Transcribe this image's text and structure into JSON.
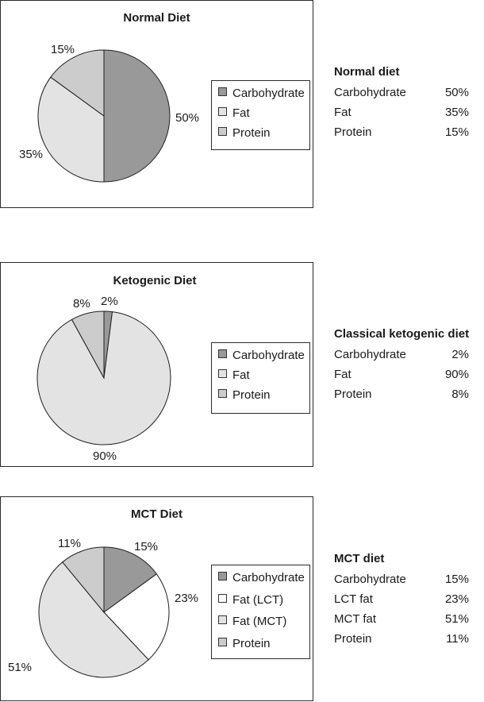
{
  "colors": {
    "carbohydrate": "#999999",
    "fat": "#e3e3e3",
    "fat_lct": "#ffffff",
    "fat_mct": "#e3e3e3",
    "protein": "#cccccc"
  },
  "chart_data": [
    {
      "type": "pie",
      "title": "Normal Diet",
      "legend": [
        "Carbohydrate",
        "Fat",
        "Protein"
      ],
      "slices": [
        {
          "name": "Carbohydrate",
          "value": 50,
          "label": "50%",
          "color": "#999999"
        },
        {
          "name": "Fat",
          "value": 35,
          "label": "35%",
          "color": "#e3e3e3"
        },
        {
          "name": "Protein",
          "value": 15,
          "label": "15%",
          "color": "#cccccc"
        }
      ],
      "table": {
        "heading": "Normal diet",
        "rows": [
          {
            "label": "Carbohydrate",
            "value": "50%"
          },
          {
            "label": "Fat",
            "value": "35%"
          },
          {
            "label": "Protein",
            "value": "15%"
          }
        ]
      }
    },
    {
      "type": "pie",
      "title": "Ketogenic Diet",
      "legend": [
        "Carbohydrate",
        "Fat",
        "Protein"
      ],
      "slices": [
        {
          "name": "Carbohydrate",
          "value": 2,
          "label": "2%",
          "color": "#999999"
        },
        {
          "name": "Fat",
          "value": 90,
          "label": "90%",
          "color": "#e3e3e3"
        },
        {
          "name": "Protein",
          "value": 8,
          "label": "8%",
          "color": "#cccccc"
        }
      ],
      "table": {
        "heading": "Classical ketogenic diet",
        "rows": [
          {
            "label": "Carbohydrate",
            "value": "2%"
          },
          {
            "label": "Fat",
            "value": "90%"
          },
          {
            "label": "Protein",
            "value": "8%"
          }
        ]
      }
    },
    {
      "type": "pie",
      "title": "MCT Diet",
      "legend": [
        "Carbohydrate",
        "Fat (LCT)",
        "Fat (MCT)",
        "Protein"
      ],
      "slices": [
        {
          "name": "Carbohydrate",
          "value": 15,
          "label": "15%",
          "color": "#999999"
        },
        {
          "name": "Fat (LCT)",
          "value": 23,
          "label": "23%",
          "color": "#ffffff"
        },
        {
          "name": "Fat (MCT)",
          "value": 51,
          "label": "51%",
          "color": "#e3e3e3"
        },
        {
          "name": "Protein",
          "value": 11,
          "label": "11%",
          "color": "#cccccc"
        }
      ],
      "table": {
        "heading": "MCT diet",
        "rows": [
          {
            "label": "Carbohydrate",
            "value": "15%"
          },
          {
            "label": "LCT fat",
            "value": "23%"
          },
          {
            "label": "MCT fat",
            "value": "51%"
          },
          {
            "label": "Protein",
            "value": "11%"
          }
        ]
      }
    }
  ]
}
